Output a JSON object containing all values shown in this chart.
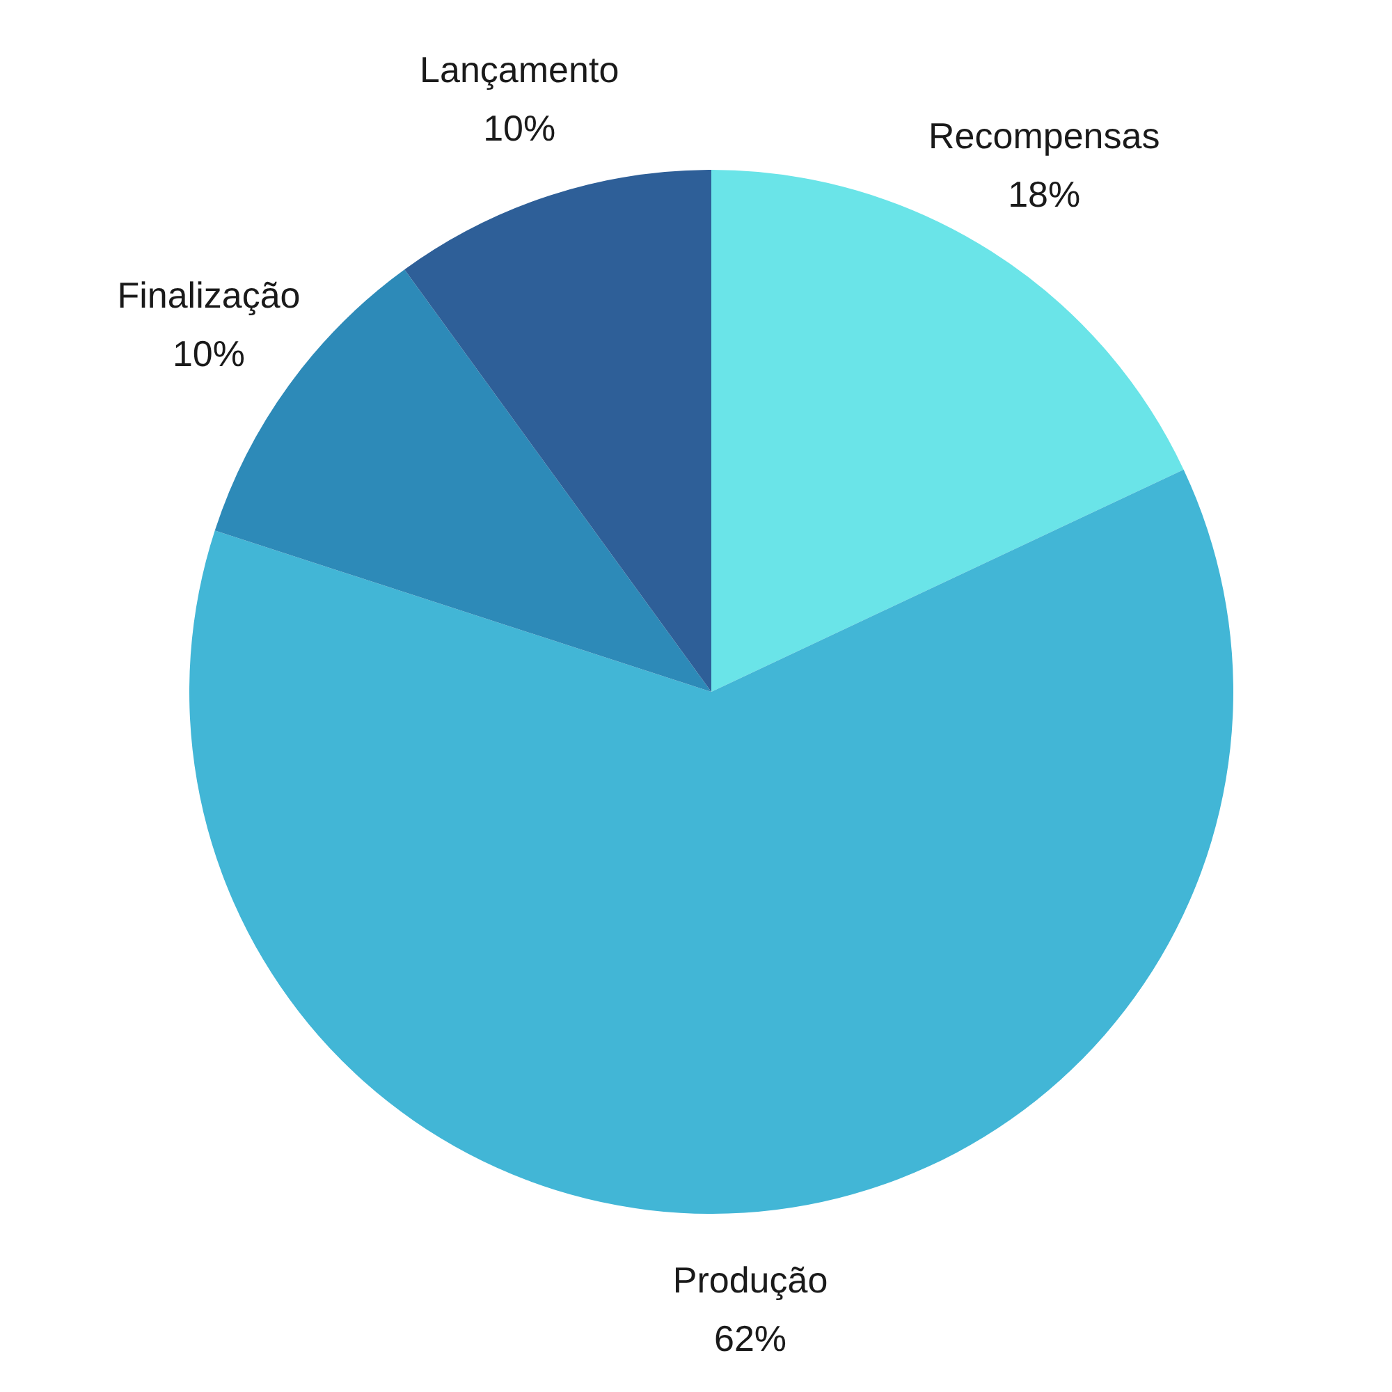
{
  "chart_data": {
    "type": "pie",
    "categories": [
      "Recompensas",
      "Produção",
      "Finalização",
      "Lançamento"
    ],
    "values": [
      18,
      62,
      10,
      10
    ],
    "colors": [
      "#6ae4e8",
      "#42b6d6",
      "#2d8ab8",
      "#2e5f98"
    ],
    "value_labels": [
      "18%",
      "62%",
      "10%",
      "10%"
    ],
    "legend": false
  }
}
